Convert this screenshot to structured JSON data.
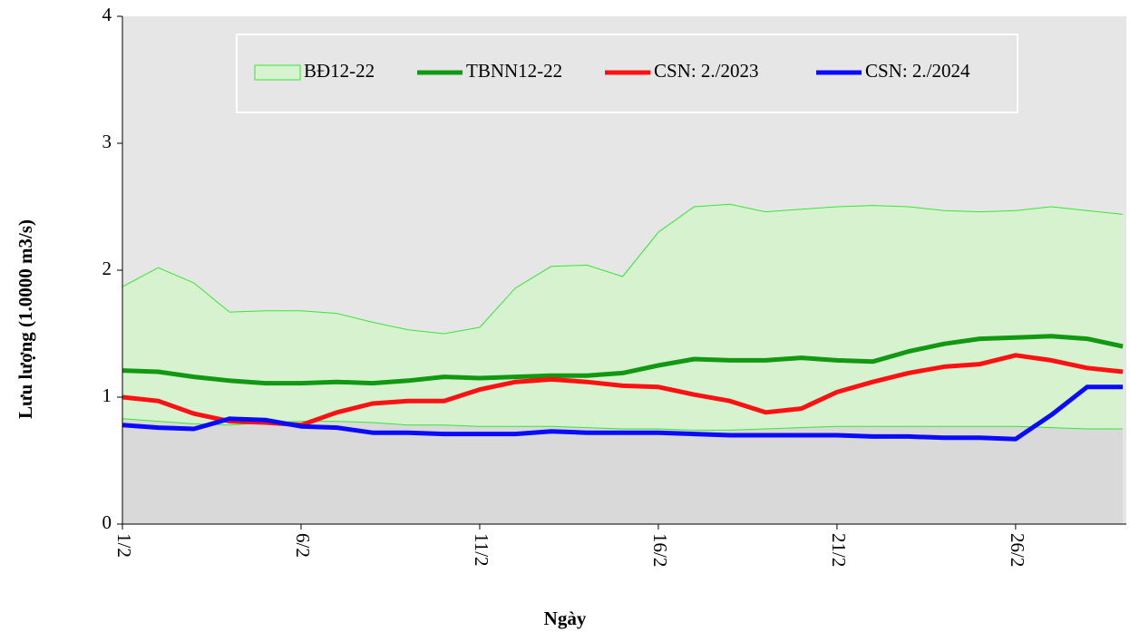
{
  "chart_data": {
    "type": "line",
    "xlabel": "Ngày",
    "ylabel": "Lưu lượng (1.0000 m3/s)",
    "x": [
      1,
      2,
      3,
      4,
      5,
      6,
      7,
      8,
      9,
      10,
      11,
      12,
      13,
      14,
      15,
      16,
      17,
      18,
      19,
      20,
      21,
      22,
      23,
      24,
      25,
      26,
      27,
      28,
      29
    ],
    "xlim": [
      1,
      29.1
    ],
    "xticks": [
      {
        "value": 1,
        "label": "1/2"
      },
      {
        "value": 6,
        "label": "6/2"
      },
      {
        "value": 11,
        "label": "11/2"
      },
      {
        "value": 16,
        "label": "16/2"
      },
      {
        "value": 21,
        "label": "21/2"
      },
      {
        "value": 26,
        "label": "26/2"
      }
    ],
    "ylim": [
      0,
      4
    ],
    "yticks": [
      0,
      1,
      2,
      3,
      4
    ],
    "series": [
      {
        "name": "BĐ12-22",
        "kind": "band",
        "color": "#33e833",
        "upper": [
          1.87,
          2.02,
          1.9,
          1.67,
          1.68,
          1.68,
          1.66,
          1.59,
          1.53,
          1.5,
          1.55,
          1.86,
          2.03,
          2.04,
          1.95,
          2.3,
          2.5,
          2.52,
          2.46,
          2.48,
          2.5,
          2.51,
          2.5,
          2.47,
          2.46,
          2.47,
          2.5,
          2.47,
          2.44
        ],
        "lower": [
          0.83,
          0.81,
          0.79,
          0.78,
          0.8,
          0.81,
          0.81,
          0.8,
          0.78,
          0.78,
          0.77,
          0.77,
          0.77,
          0.76,
          0.75,
          0.75,
          0.74,
          0.74,
          0.75,
          0.76,
          0.77,
          0.77,
          0.77,
          0.77,
          0.77,
          0.77,
          0.76,
          0.75,
          0.75
        ]
      },
      {
        "name": "TBNN12-22",
        "color": "#119911",
        "values": [
          1.21,
          1.2,
          1.16,
          1.13,
          1.11,
          1.11,
          1.12,
          1.11,
          1.13,
          1.16,
          1.15,
          1.16,
          1.17,
          1.17,
          1.19,
          1.25,
          1.3,
          1.29,
          1.29,
          1.31,
          1.29,
          1.28,
          1.36,
          1.42,
          1.46,
          1.47,
          1.48,
          1.46,
          1.4
        ]
      },
      {
        "name": "CSN: 2./2023",
        "color": "#ff1111",
        "values": [
          1.0,
          0.97,
          0.87,
          0.81,
          0.8,
          0.78,
          0.88,
          0.95,
          0.97,
          0.97,
          1.06,
          1.12,
          1.14,
          1.12,
          1.09,
          1.08,
          1.02,
          0.97,
          0.88,
          0.91,
          1.04,
          1.12,
          1.19,
          1.24,
          1.26,
          1.33,
          1.29,
          1.23,
          1.2
        ]
      },
      {
        "name": "CSN: 2./2024",
        "color": "#0a0aff",
        "values": [
          0.78,
          0.76,
          0.75,
          0.83,
          0.82,
          0.77,
          0.76,
          0.72,
          0.72,
          0.71,
          0.71,
          0.71,
          0.73,
          0.72,
          0.72,
          0.72,
          0.71,
          0.7,
          0.7,
          0.7,
          0.7,
          0.69,
          0.69,
          0.68,
          0.68,
          0.67,
          0.86,
          1.08,
          1.08
        ]
      }
    ]
  }
}
